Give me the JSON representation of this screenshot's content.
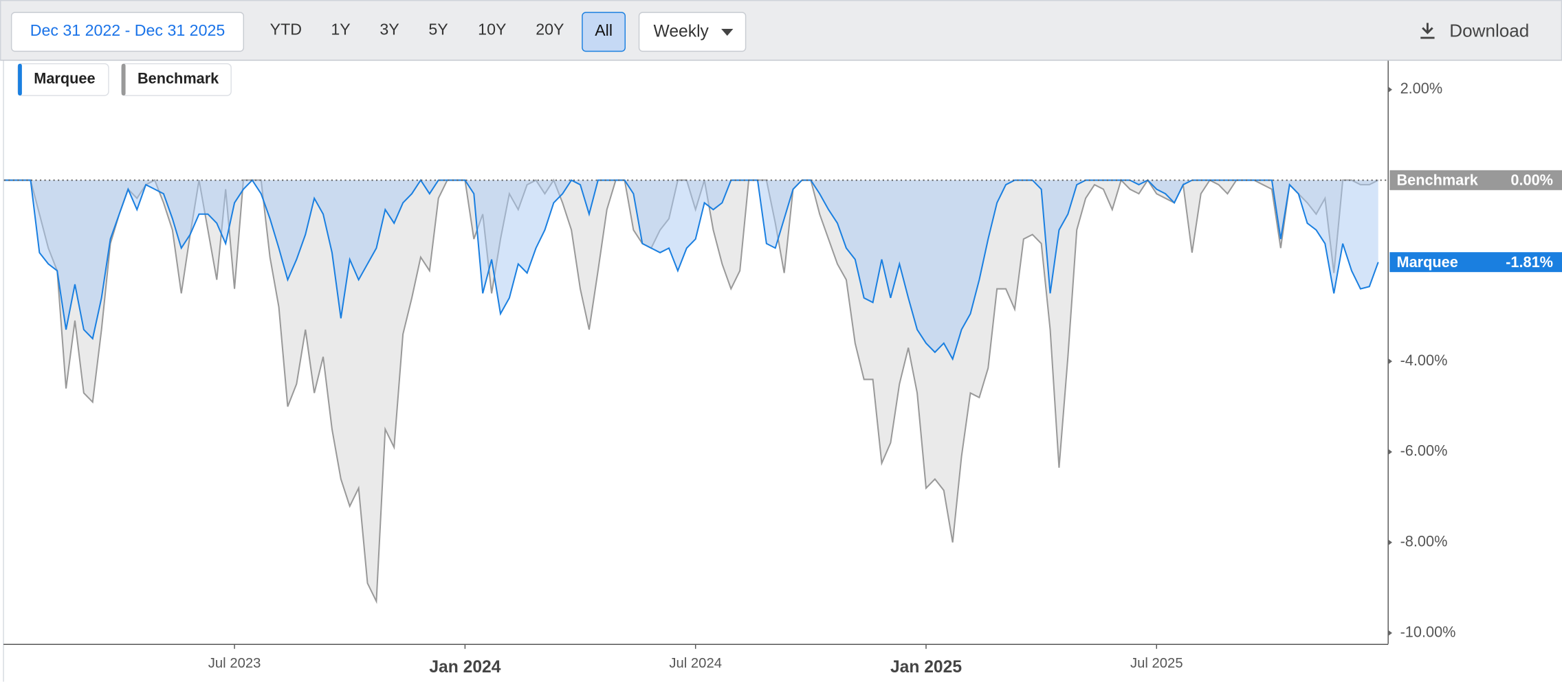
{
  "toolbar": {
    "date_range": "Dec 31 2022 - Dec 31 2025",
    "ranges": [
      "YTD",
      "1Y",
      "3Y",
      "5Y",
      "10Y",
      "20Y",
      "All"
    ],
    "selected_index": 6,
    "frequency": "Weekly",
    "download": "Download"
  },
  "chart_data": {
    "type": "area",
    "grid": false,
    "categories": [
      null,
      null,
      null,
      null,
      null,
      null,
      null,
      null,
      null,
      null,
      null,
      null,
      null,
      null,
      null,
      null,
      null,
      null,
      null,
      null,
      null,
      null,
      null,
      null,
      null,
      null,
      "Jul 2023",
      null,
      null,
      null,
      null,
      null,
      null,
      null,
      null,
      null,
      null,
      null,
      null,
      null,
      null,
      null,
      null,
      null,
      null,
      null,
      null,
      null,
      null,
      null,
      null,
      null,
      "Jan 2024",
      null,
      null,
      null,
      null,
      null,
      null,
      null,
      null,
      null,
      null,
      null,
      null,
      null,
      null,
      null,
      null,
      null,
      null,
      null,
      null,
      null,
      null,
      null,
      null,
      null,
      "Jul 2024",
      null,
      null,
      null,
      null,
      null,
      null,
      null,
      null,
      null,
      null,
      null,
      null,
      null,
      null,
      null,
      null,
      null,
      null,
      null,
      null,
      null,
      null,
      null,
      null,
      null,
      "Jan 2025",
      null,
      null,
      null,
      null,
      null,
      null,
      null,
      null,
      null,
      null,
      null,
      null,
      null,
      null,
      null,
      null,
      null,
      null,
      null,
      null,
      null,
      null,
      null,
      null,
      null,
      "Jul 2025",
      null,
      null,
      null,
      null,
      null,
      null,
      null,
      null,
      null,
      null,
      null,
      null,
      null,
      null,
      null,
      null,
      null,
      null,
      null,
      null,
      null,
      null,
      null,
      null,
      null
    ],
    "ylim": [
      -10.24,
      2.66
    ],
    "yticks": [
      {
        "value": 2,
        "label": "2.00%"
      },
      {
        "value": -4,
        "label": "-4.00%"
      },
      {
        "value": -6,
        "label": "-6.00%"
      },
      {
        "value": -8,
        "label": "-8.00%"
      },
      {
        "value": -10,
        "label": "-10.00%"
      }
    ],
    "series": [
      {
        "name": "Benchmark",
        "color": "#999999",
        "fill": "#dcdcdc",
        "end_label": "0.00%",
        "values": [
          0,
          0,
          0,
          0,
          -0.75,
          -1.5,
          -2,
          -4.6,
          -3.1,
          -4.7,
          -4.9,
          -3.3,
          -1.4,
          -0.75,
          -0.2,
          -0.4,
          -0.1,
          0,
          -0.5,
          -1.1,
          -2.5,
          -1.2,
          0,
          -1.1,
          -2.2,
          -0.2,
          -2.4,
          0,
          0,
          0,
          -1.7,
          -2.8,
          -5,
          -4.5,
          -3.3,
          -4.7,
          -3.9,
          -5.5,
          -6.6,
          -7.2,
          -6.8,
          -8.9,
          -9.3,
          -5.5,
          -5.9,
          -3.4,
          -2.6,
          -1.7,
          -2,
          -0.4,
          0,
          0,
          0,
          -1.3,
          -0.75,
          -2.5,
          -1.3,
          -0.3,
          -0.65,
          -0.1,
          0,
          -0.3,
          0,
          -0.5,
          -1.1,
          -2.4,
          -3.3,
          -2,
          -0.65,
          0,
          0,
          -1.1,
          -1.4,
          -1.5,
          -1.1,
          -0.85,
          0,
          0,
          -0.65,
          0,
          -1.1,
          -1.85,
          -2.4,
          -2,
          0,
          0,
          0,
          -0.95,
          -2.05,
          -0.2,
          0,
          0,
          -0.75,
          -1.3,
          -1.85,
          -2.2,
          -3.6,
          -4.4,
          -4.4,
          -6.25,
          -5.8,
          -4.5,
          -3.7,
          -4.7,
          -6.8,
          -6.6,
          -6.85,
          -8,
          -6.1,
          -4.7,
          -4.8,
          -4.15,
          -2.4,
          -2.4,
          -2.85,
          -1.3,
          -1.2,
          -1.4,
          -3.3,
          -6.35,
          -3.9,
          -1.1,
          -0.4,
          -0.1,
          -0.2,
          -0.65,
          0,
          -0.2,
          -0.3,
          0,
          -0.3,
          -0.4,
          -0.5,
          -0.1,
          -1.6,
          -0.3,
          0,
          -0.1,
          -0.3,
          0,
          0,
          0,
          -0.1,
          -0.2,
          -1.5,
          -0.1,
          -0.3,
          -0.5,
          -0.75,
          -0.4,
          -2.05,
          0,
          0,
          -0.1,
          -0.1,
          0
        ]
      },
      {
        "name": "Marquee",
        "color": "#1a7fe0",
        "fill": "#a9c9f3",
        "end_label": "-1.81%",
        "values": [
          0,
          0,
          0,
          0,
          -1.6,
          -1.85,
          -2,
          -3.3,
          -2.3,
          -3.3,
          -3.5,
          -2.6,
          -1.3,
          -0.75,
          -0.2,
          -0.65,
          -0.1,
          -0.2,
          -0.3,
          -0.85,
          -1.5,
          -1.2,
          -0.75,
          -0.75,
          -0.95,
          -1.4,
          -0.5,
          -0.2,
          0,
          -0.3,
          -0.85,
          -1.5,
          -2.2,
          -1.75,
          -1.2,
          -0.4,
          -0.75,
          -1.6,
          -3.05,
          -1.75,
          -2.2,
          -1.85,
          -1.5,
          -0.65,
          -0.95,
          -0.5,
          -0.3,
          0,
          -0.3,
          0,
          0,
          0,
          0,
          -0.3,
          -2.5,
          -1.75,
          -2.95,
          -2.6,
          -1.85,
          -2.05,
          -1.5,
          -1.1,
          -0.5,
          -0.3,
          0,
          -0.1,
          -0.75,
          0,
          0,
          0,
          0,
          -0.3,
          -1.4,
          -1.5,
          -1.6,
          -1.5,
          -2,
          -1.5,
          -1.3,
          -0.5,
          -0.65,
          -0.5,
          0,
          0,
          0,
          0,
          -1.4,
          -1.5,
          -0.85,
          -0.2,
          0,
          0,
          -0.3,
          -0.65,
          -0.95,
          -1.5,
          -1.75,
          -2.6,
          -2.7,
          -1.75,
          -2.6,
          -1.85,
          -2.6,
          -3.3,
          -3.6,
          -3.8,
          -3.6,
          -3.95,
          -3.3,
          -2.95,
          -2.2,
          -1.3,
          -0.5,
          -0.1,
          0,
          0,
          0,
          -0.2,
          -2.5,
          -1.1,
          -0.75,
          -0.1,
          0,
          0,
          0,
          0,
          0,
          0,
          -0.1,
          0,
          -0.2,
          -0.3,
          -0.5,
          -0.1,
          0,
          0,
          0,
          0,
          0,
          0,
          0,
          0,
          0,
          0,
          -1.3,
          -0.1,
          -0.3,
          -0.95,
          -1.1,
          -1.4,
          -2.5,
          -1.4,
          -2,
          -2.4,
          -2.35,
          -1.81
        ]
      }
    ]
  }
}
